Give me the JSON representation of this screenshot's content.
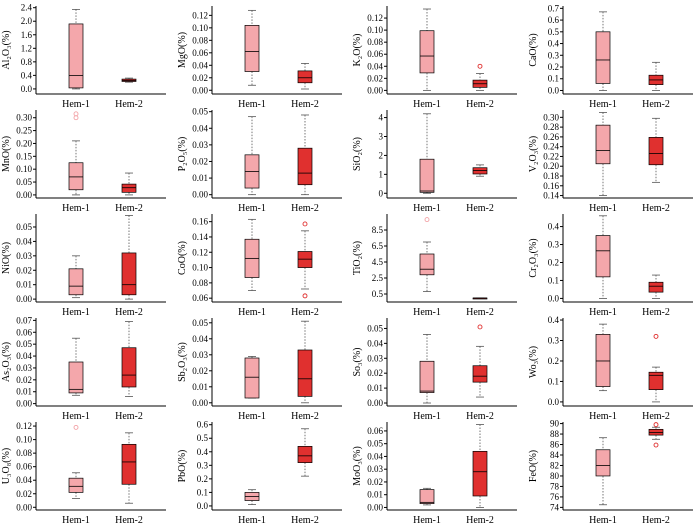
{
  "colors": {
    "hem1": "#f4a7ab",
    "hem2": "#e0302f",
    "outlier1": "#f3a3a7",
    "outlier2": "#e0302f",
    "axis": "#000000",
    "whisker": "#555555"
  },
  "chart_data": [
    {
      "type": "box",
      "ylabel": "Al₂O₃(%)",
      "yticks": [
        "0.0",
        "0.4",
        "0.8",
        "1.2",
        "1.6",
        "2.0",
        "2.4"
      ],
      "ylim": [
        -0.15,
        2.45
      ],
      "categories": [
        "Hem-1",
        "Hem-2"
      ],
      "series": [
        {
          "name": "Hem-1",
          "min": 0.0,
          "q1": 0.03,
          "median": 0.4,
          "q3": 1.92,
          "max": 2.35,
          "outliers": []
        },
        {
          "name": "Hem-2",
          "min": 0.2,
          "q1": 0.22,
          "median": 0.25,
          "q3": 0.29,
          "max": 0.32,
          "outliers": []
        }
      ]
    },
    {
      "type": "box",
      "ylabel": "MgO(%)",
      "yticks": [
        "0.00",
        "0.02",
        "0.04",
        "0.06",
        "0.08",
        "0.10",
        "0.12"
      ],
      "ylim": [
        -0.006,
        0.135
      ],
      "categories": [
        "Hem-1",
        "Hem-2"
      ],
      "series": [
        {
          "name": "Hem-1",
          "min": 0.008,
          "q1": 0.03,
          "median": 0.062,
          "q3": 0.104,
          "max": 0.128,
          "outliers": []
        },
        {
          "name": "Hem-2",
          "min": 0.002,
          "q1": 0.012,
          "median": 0.02,
          "q3": 0.031,
          "max": 0.043,
          "outliers": []
        }
      ]
    },
    {
      "type": "box",
      "ylabel": "K₂O(%)",
      "yticks": [
        "0.00",
        "0.02",
        "0.04",
        "0.06",
        "0.08",
        "0.10",
        "0.12"
      ],
      "ylim": [
        -0.006,
        0.14
      ],
      "categories": [
        "Hem-1",
        "Hem-2"
      ],
      "series": [
        {
          "name": "Hem-1",
          "min": 0.0,
          "q1": 0.029,
          "median": 0.057,
          "q3": 0.099,
          "max": 0.135,
          "outliers": []
        },
        {
          "name": "Hem-2",
          "min": 0.0,
          "q1": 0.005,
          "median": 0.011,
          "q3": 0.017,
          "max": 0.028,
          "outliers": [
            0.04
          ]
        }
      ]
    },
    {
      "type": "box",
      "ylabel": "CaO(%)",
      "yticks": [
        "0.0",
        "0.1",
        "0.2",
        "0.3",
        "0.4",
        "0.5",
        "0.6",
        "0.7"
      ],
      "ylim": [
        -0.03,
        0.72
      ],
      "categories": [
        "Hem-1",
        "Hem-2"
      ],
      "series": [
        {
          "name": "Hem-1",
          "min": 0.0,
          "q1": 0.06,
          "median": 0.26,
          "q3": 0.5,
          "max": 0.67,
          "outliers": []
        },
        {
          "name": "Hem-2",
          "min": 0.0,
          "q1": 0.05,
          "median": 0.09,
          "q3": 0.13,
          "max": 0.24,
          "outliers": []
        }
      ]
    },
    {
      "type": "box",
      "ylabel": "MnO(%)",
      "yticks": [
        "0.00",
        "0.05",
        "0.10",
        "0.15",
        "0.20",
        "0.25",
        "0.30"
      ],
      "ylim": [
        -0.012,
        0.33
      ],
      "categories": [
        "Hem-1",
        "Hem-2"
      ],
      "series": [
        {
          "name": "Hem-1",
          "min": 0.0,
          "q1": 0.02,
          "median": 0.07,
          "q3": 0.125,
          "max": 0.21,
          "outliers": [
            0.3,
            0.315
          ]
        },
        {
          "name": "Hem-2",
          "min": 0.0,
          "q1": 0.01,
          "median": 0.028,
          "q3": 0.042,
          "max": 0.085,
          "outliers": []
        }
      ]
    },
    {
      "type": "box",
      "ylabel": "P₂O₅(%)",
      "yticks": [
        "0.00",
        "0.01",
        "0.02",
        "0.03",
        "0.04",
        "0.05"
      ],
      "ylim": [
        -0.002,
        0.051
      ],
      "categories": [
        "Hem-1",
        "Hem-2"
      ],
      "series": [
        {
          "name": "Hem-1",
          "min": 0.0,
          "q1": 0.004,
          "median": 0.014,
          "q3": 0.024,
          "max": 0.047,
          "outliers": []
        },
        {
          "name": "Hem-2",
          "min": 0.0,
          "q1": 0.006,
          "median": 0.013,
          "q3": 0.028,
          "max": 0.048,
          "outliers": []
        }
      ]
    },
    {
      "type": "box",
      "ylabel": "SiO₂(%)",
      "yticks": [
        "0",
        "1",
        "2",
        "3",
        "4"
      ],
      "ylim": [
        -0.25,
        4.4
      ],
      "categories": [
        "Hem-1",
        "Hem-2"
      ],
      "series": [
        {
          "name": "Hem-1",
          "min": 0.0,
          "q1": 0.05,
          "median": 0.12,
          "q3": 1.8,
          "max": 4.2,
          "outliers": []
        },
        {
          "name": "Hem-2",
          "min": 0.9,
          "q1": 1.02,
          "median": 1.2,
          "q3": 1.35,
          "max": 1.5,
          "outliers": []
        }
      ]
    },
    {
      "type": "box",
      "ylabel": "V₂O₃(%)",
      "yticks": [
        "0.14",
        "0.16",
        "0.18",
        "0.20",
        "0.22",
        "0.24",
        "0.26",
        "0.28",
        "0.30"
      ],
      "ylim": [
        0.135,
        0.315
      ],
      "categories": [
        "Hem-1",
        "Hem-2"
      ],
      "series": [
        {
          "name": "Hem-1",
          "min": 0.14,
          "q1": 0.205,
          "median": 0.232,
          "q3": 0.284,
          "max": 0.31,
          "outliers": []
        },
        {
          "name": "Hem-2",
          "min": 0.167,
          "q1": 0.203,
          "median": 0.226,
          "q3": 0.259,
          "max": 0.298,
          "outliers": []
        }
      ]
    },
    {
      "type": "box",
      "ylabel": "NiO(%)",
      "yticks": [
        "0.00",
        "0.01",
        "0.02",
        "0.03",
        "0.04",
        "0.05"
      ],
      "ylim": [
        -0.002,
        0.059
      ],
      "categories": [
        "Hem-1",
        "Hem-2"
      ],
      "series": [
        {
          "name": "Hem-1",
          "min": 0.001,
          "q1": 0.003,
          "median": 0.009,
          "q3": 0.021,
          "max": 0.03,
          "outliers": []
        },
        {
          "name": "Hem-2",
          "min": 0.0,
          "q1": 0.003,
          "median": 0.01,
          "q3": 0.032,
          "max": 0.058,
          "outliers": []
        }
      ]
    },
    {
      "type": "box",
      "ylabel": "CoO(%)",
      "yticks": [
        "0.06",
        "0.08",
        "0.10",
        "0.12",
        "0.14",
        "0.16"
      ],
      "ylim": [
        0.055,
        0.17
      ],
      "categories": [
        "Hem-1",
        "Hem-2"
      ],
      "series": [
        {
          "name": "Hem-1",
          "min": 0.07,
          "q1": 0.087,
          "median": 0.112,
          "q3": 0.137,
          "max": 0.163,
          "outliers": []
        },
        {
          "name": "Hem-2",
          "min": 0.072,
          "q1": 0.1,
          "median": 0.111,
          "q3": 0.121,
          "max": 0.148,
          "outliers": [
            0.157,
            0.063
          ]
        }
      ]
    },
    {
      "type": "box",
      "ylabel": "TiO₂(%)",
      "yticks": [
        "0.5",
        "2.5",
        "4.5",
        "6.5",
        "8.5"
      ],
      "ylim": [
        -0.5,
        10.5
      ],
      "categories": [
        "Hem-1",
        "Hem-2"
      ],
      "series": [
        {
          "name": "Hem-1",
          "min": 0.8,
          "q1": 2.9,
          "median": 3.6,
          "q3": 5.5,
          "max": 7.0,
          "outliers": [
            9.8
          ]
        },
        {
          "name": "Hem-2",
          "min": 0.0,
          "q1": 0.0,
          "median": 0.0,
          "q3": 0.0,
          "max": 0.0,
          "outliers": []
        }
      ]
    },
    {
      "type": "box",
      "ylabel": "Cr₂O₃(%)",
      "yticks": [
        "0.0",
        "0.1",
        "0.2",
        "0.3",
        "0.4"
      ],
      "ylim": [
        -0.02,
        0.47
      ],
      "categories": [
        "Hem-1",
        "Hem-2"
      ],
      "series": [
        {
          "name": "Hem-1",
          "min": 0.0,
          "q1": 0.12,
          "median": 0.265,
          "q3": 0.35,
          "max": 0.46,
          "outliers": []
        },
        {
          "name": "Hem-2",
          "min": 0.0,
          "q1": 0.035,
          "median": 0.068,
          "q3": 0.09,
          "max": 0.13,
          "outliers": []
        }
      ]
    },
    {
      "type": "box",
      "ylabel": "As₂O₃(%)",
      "yticks": [
        "0.00",
        "0.01",
        "0.02",
        "0.03",
        "0.04",
        "0.05",
        "0.06",
        "0.07"
      ],
      "ylim": [
        -0.002,
        0.072
      ],
      "categories": [
        "Hem-1",
        "Hem-2"
      ],
      "series": [
        {
          "name": "Hem-1",
          "min": 0.007,
          "q1": 0.009,
          "median": 0.012,
          "q3": 0.035,
          "max": 0.055,
          "outliers": []
        },
        {
          "name": "Hem-2",
          "min": 0.006,
          "q1": 0.014,
          "median": 0.024,
          "q3": 0.047,
          "max": 0.069,
          "outliers": []
        }
      ]
    },
    {
      "type": "box",
      "ylabel": "Sb₂O₃(%)",
      "yticks": [
        "0.00",
        "0.01",
        "0.02",
        "0.03",
        "0.04",
        "0.05"
      ],
      "ylim": [
        -0.002,
        0.053
      ],
      "categories": [
        "Hem-1",
        "Hem-2"
      ],
      "series": [
        {
          "name": "Hem-1",
          "min": 0.003,
          "q1": 0.003,
          "median": 0.016,
          "q3": 0.028,
          "max": 0.029,
          "outliers": []
        },
        {
          "name": "Hem-2",
          "min": 0.0,
          "q1": 0.004,
          "median": 0.015,
          "q3": 0.033,
          "max": 0.051,
          "outliers": []
        }
      ]
    },
    {
      "type": "box",
      "ylabel": "So₃(%)",
      "yticks": [
        "0.00",
        "0.01",
        "0.02",
        "0.03",
        "0.04",
        "0.05"
      ],
      "ylim": [
        -0.002,
        0.057
      ],
      "categories": [
        "Hem-1",
        "Hem-2"
      ],
      "series": [
        {
          "name": "Hem-1",
          "min": 0.0,
          "q1": 0.007,
          "median": 0.008,
          "q3": 0.028,
          "max": 0.046,
          "outliers": []
        },
        {
          "name": "Hem-2",
          "min": 0.004,
          "q1": 0.014,
          "median": 0.018,
          "q3": 0.025,
          "max": 0.038,
          "outliers": [
            0.051
          ]
        }
      ]
    },
    {
      "type": "box",
      "ylabel": "Wo₃(%)",
      "yticks": [
        "0.0",
        "0.1",
        "0.2",
        "0.3",
        "0.4"
      ],
      "ylim": [
        -0.02,
        0.41
      ],
      "categories": [
        "Hem-1",
        "Hem-2"
      ],
      "series": [
        {
          "name": "Hem-1",
          "min": 0.055,
          "q1": 0.075,
          "median": 0.2,
          "q3": 0.33,
          "max": 0.38,
          "outliers": []
        },
        {
          "name": "Hem-2",
          "min": 0.0,
          "q1": 0.06,
          "median": 0.13,
          "q3": 0.145,
          "max": 0.17,
          "outliers": [
            0.32
          ]
        }
      ]
    },
    {
      "type": "box",
      "ylabel": "U₃O₈(%)",
      "yticks": [
        "0.00",
        "0.02",
        "0.04",
        "0.06",
        "0.08",
        "0.10",
        "0.12"
      ],
      "ylim": [
        -0.004,
        0.126
      ],
      "categories": [
        "Hem-1",
        "Hem-2"
      ],
      "series": [
        {
          "name": "Hem-1",
          "min": 0.013,
          "q1": 0.022,
          "median": 0.031,
          "q3": 0.043,
          "max": 0.051,
          "outliers": [
            0.118
          ]
        },
        {
          "name": "Hem-2",
          "min": 0.006,
          "q1": 0.034,
          "median": 0.067,
          "q3": 0.093,
          "max": 0.11,
          "outliers": []
        }
      ]
    },
    {
      "type": "box",
      "ylabel": "PbO(%)",
      "yticks": [
        "0.0",
        "0.1",
        "0.2",
        "0.3",
        "0.4",
        "0.5",
        "0.6"
      ],
      "ylim": [
        -0.03,
        0.62
      ],
      "categories": [
        "Hem-1",
        "Hem-2"
      ],
      "series": [
        {
          "name": "Hem-1",
          "min": 0.01,
          "q1": 0.04,
          "median": 0.07,
          "q3": 0.1,
          "max": 0.12,
          "outliers": []
        },
        {
          "name": "Hem-2",
          "min": 0.22,
          "q1": 0.32,
          "median": 0.37,
          "q3": 0.44,
          "max": 0.57,
          "outliers": []
        }
      ]
    },
    {
      "type": "box",
      "ylabel": "MoO₃(%)",
      "yticks": [
        "0.00",
        "0.01",
        "0.02",
        "0.03",
        "0.04",
        "0.05",
        "0.06"
      ],
      "ylim": [
        -0.002,
        0.067
      ],
      "categories": [
        "Hem-1",
        "Hem-2"
      ],
      "series": [
        {
          "name": "Hem-1",
          "min": 0.002,
          "q1": 0.003,
          "median": 0.004,
          "q3": 0.014,
          "max": 0.015,
          "outliers": []
        },
        {
          "name": "Hem-2",
          "min": 0.0,
          "q1": 0.009,
          "median": 0.028,
          "q3": 0.044,
          "max": 0.065,
          "outliers": []
        }
      ]
    },
    {
      "type": "box",
      "ylabel": "FeO(%)",
      "yticks": [
        "74",
        "76",
        "78",
        "80",
        "82",
        "84",
        "86",
        "88",
        "90"
      ],
      "ylim": [
        73.5,
        90.3
      ],
      "categories": [
        "Hem-1",
        "Hem-2"
      ],
      "series": [
        {
          "name": "Hem-1",
          "min": 74.5,
          "q1": 80.0,
          "median": 82.0,
          "q3": 85.0,
          "max": 87.3,
          "outliers": []
        },
        {
          "name": "Hem-2",
          "min": 87.0,
          "q1": 87.8,
          "median": 88.3,
          "q3": 88.9,
          "max": 89.3,
          "outliers": [
            85.9,
            89.8
          ]
        }
      ]
    }
  ]
}
